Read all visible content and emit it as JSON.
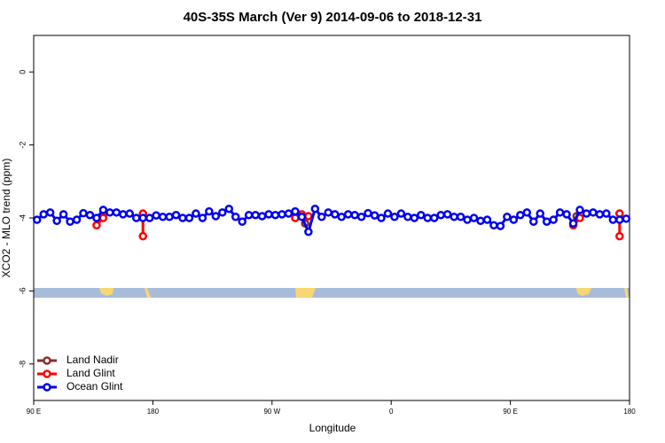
{
  "chart_data": {
    "type": "line",
    "title": "40S-35S March (Ver 9)   2014-09-06 to 2018-12-31",
    "x_label": "Longitude",
    "y_label": "XCO2 - MLO trend (ppm)",
    "xlim": [
      90,
      540
    ],
    "xticks": [
      {
        "value": 90,
        "label": "90 E"
      },
      180,
      {
        "value": 270,
        "label": "90 W"
      },
      {
        "value": 360,
        "label": "0"
      },
      {
        "value": 450,
        "label": "90 E"
      },
      {
        "value": 540,
        "label": "180"
      }
    ],
    "ylim": [
      -9,
      1
    ],
    "yticks": [
      0,
      -2,
      -4,
      -6,
      -8
    ],
    "legend": "bottom-left",
    "series": [
      {
        "name": "Land Nadir",
        "color": "#8b2a2a",
        "x": [
          142.5,
          null,
          295,
          null,
          500,
          null,
          532.5
        ],
        "values": [
          -3.9,
          null,
          -4.15,
          null,
          -3.95,
          null,
          -3.88
        ]
      },
      {
        "name": "Land Glint",
        "color": "#ff0000",
        "x": [
          137.5,
          142.5,
          null,
          172.5,
          172.5,
          null,
          287.5,
          292.5,
          297.5,
          null,
          497.5,
          502.5,
          null,
          532.5,
          532.5
        ],
        "values": [
          -4.2,
          -4.0,
          null,
          -3.88,
          -4.5,
          null,
          -4.0,
          -3.9,
          -3.95,
          null,
          -4.2,
          -4.0,
          null,
          -3.88,
          -4.5
        ]
      },
      {
        "name": "Ocean Glint",
        "color": "#0000ee",
        "x": [
          92.5,
          97.5,
          102.5,
          107.5,
          112.5,
          117.5,
          122.5,
          127.5,
          132.5,
          137.5,
          142.5,
          147.5,
          152.5,
          157.5,
          162.5,
          167.5,
          172.5,
          177.5,
          182.5,
          187.5,
          192.5,
          197.5,
          202.5,
          207.5,
          212.5,
          217.5,
          222.5,
          227.5,
          232.5,
          237.5,
          242.5,
          247.5,
          252.5,
          257.5,
          262.5,
          267.5,
          272.5,
          277.5,
          282.5,
          287.5,
          292.5,
          297.5,
          302.5,
          307.5,
          312.5,
          317.5,
          322.5,
          327.5,
          332.5,
          337.5,
          342.5,
          347.5,
          352.5,
          357.5,
          362.5,
          367.5,
          372.5,
          377.5,
          382.5,
          387.5,
          392.5,
          397.5,
          402.5,
          407.5,
          412.5,
          417.5,
          422.5,
          427.5,
          432.5,
          437.5,
          442.5,
          447.5,
          452.5,
          457.5,
          462.5,
          467.5,
          472.5,
          477.5,
          482.5,
          487.5,
          492.5,
          497.5,
          502.5,
          507.5,
          512.5,
          517.5,
          522.5,
          527.5,
          532.5,
          537.5
        ],
        "values": [
          -4.05,
          -3.9,
          -3.85,
          -4.08,
          -3.9,
          -4.1,
          -4.05,
          -3.87,
          -3.92,
          -4.0,
          -3.78,
          -3.85,
          -3.85,
          -3.9,
          -3.88,
          -4.0,
          -4.0,
          -4.0,
          -3.93,
          -3.97,
          -3.97,
          -3.92,
          -4.0,
          -4.0,
          -3.88,
          -4.0,
          -3.82,
          -3.95,
          -3.85,
          -3.75,
          -3.97,
          -4.1,
          -3.92,
          -3.92,
          -3.95,
          -3.9,
          -3.92,
          -3.9,
          -3.88,
          -3.82,
          -3.97,
          -4.38,
          -3.75,
          -3.97,
          -3.85,
          -3.9,
          -3.97,
          -3.9,
          -3.92,
          -3.97,
          -3.87,
          -3.93,
          -4.0,
          -3.88,
          -3.97,
          -3.88,
          -3.97,
          -4.0,
          -3.92,
          -4.0,
          -4.0,
          -3.92,
          -3.9,
          -3.97,
          -3.97,
          -4.05,
          -4.0,
          -4.08,
          -4.05,
          -4.2,
          -4.22,
          -3.97,
          -4.05,
          -3.92,
          -3.85,
          -4.1,
          -3.88,
          -4.1,
          -4.05,
          -3.85,
          -3.9,
          -4.15,
          -3.78,
          -3.88,
          -3.85,
          -3.9,
          -3.88,
          -4.05,
          -4.05,
          -4.02
        ]
      }
    ]
  }
}
